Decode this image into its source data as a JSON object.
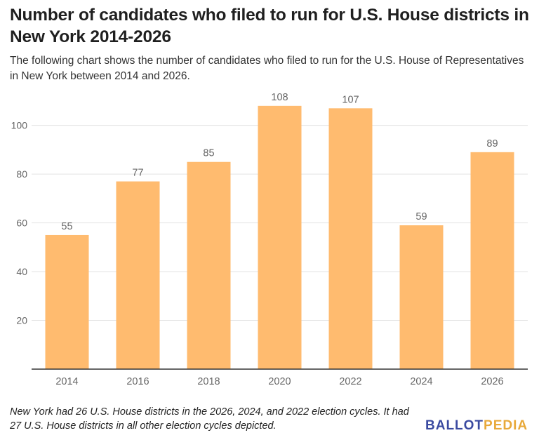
{
  "title": "Number of candidates who filed to run for U.S. House districts in New York 2014-2026",
  "subtitle": "The following chart shows the number of candidates who filed to run for the U.S. House of Representatives in New York between 2014 and 2026.",
  "note": "New York had 26 U.S. House districts in the 2026, 2024, and 2022 election cycles. It had 27 U.S. House districts in all other election cycles depicted.",
  "logo": {
    "part1": "BALLOT",
    "part2": "PEDIA"
  },
  "colors": {
    "bar": "#ffbb6f",
    "grid": "#e3e3e3",
    "axis": "#333333",
    "tick_label": "#666666",
    "value_label": "#666666",
    "logo_blue": "#3a4aa0",
    "logo_gold": "#e8a93a"
  },
  "chart_data": {
    "type": "bar",
    "title": "Number of candidates who filed to run for U.S. House districts in New York 2014-2026",
    "xlabel": "",
    "ylabel": "",
    "categories": [
      "2014",
      "2016",
      "2018",
      "2020",
      "2022",
      "2024",
      "2026"
    ],
    "values": [
      55,
      77,
      85,
      108,
      107,
      59,
      89
    ],
    "ylim": [
      0,
      114
    ],
    "yticks": [
      20,
      40,
      60,
      80,
      100
    ],
    "grid": true,
    "legend": "none",
    "data_labels": true
  }
}
